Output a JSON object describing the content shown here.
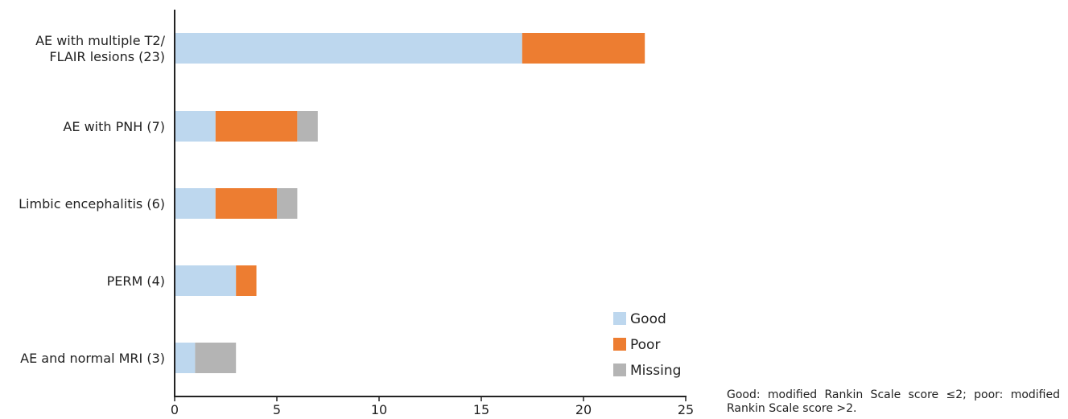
{
  "chart_data": {
    "type": "bar",
    "orientation": "horizontal",
    "stacked": true,
    "categories": [
      [
        "AE with multiple T2/",
        "FLAIR lesions (23)"
      ],
      [
        "AE with PNH (7)"
      ],
      [
        "Limbic encephalitis (6)"
      ],
      [
        "PERM (4)"
      ],
      [
        "AE and normal MRI (3)"
      ]
    ],
    "series": [
      {
        "name": "Good",
        "color": "#bdd7ee",
        "values": [
          17,
          2,
          2,
          3,
          1
        ]
      },
      {
        "name": "Poor",
        "color": "#ed7d31",
        "values": [
          6,
          4,
          3,
          1,
          0
        ]
      },
      {
        "name": "Missing",
        "color": "#b4b4b4",
        "values": [
          0,
          1,
          1,
          0,
          2
        ]
      }
    ],
    "xlim": [
      0,
      25
    ],
    "xticks": [
      0,
      5,
      10,
      15,
      20,
      25
    ],
    "grid": false,
    "legend_position": "bottom-right"
  },
  "footnote": "Good: modified Rankin Scale score ≤2; poor: modified Rankin Scale score >2."
}
